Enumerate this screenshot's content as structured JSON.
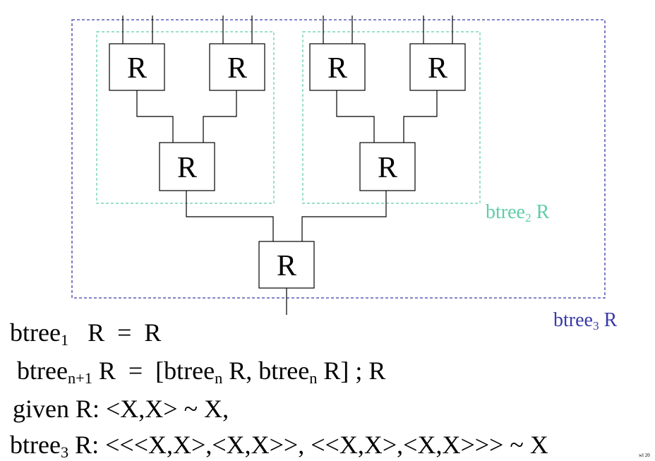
{
  "colors": {
    "inner_box": "#5fcda9",
    "outer_box": "#3a3aa8",
    "ink": "#000000"
  },
  "diagram": {
    "node_label": "R",
    "inner_label": {
      "base": "btree",
      "sub": "2",
      "rest": " R"
    },
    "outer_label": {
      "base": "btree",
      "sub": "3",
      "rest": " R"
    }
  },
  "equations": [
    {
      "parts": [
        {
          "t": "btree"
        },
        {
          "sub": "1"
        },
        {
          "t": "   R  =  R"
        }
      ]
    },
    {
      "parts": [
        {
          "t": "btree"
        },
        {
          "sub": "n+1"
        },
        {
          "t": " R  =  [btree"
        },
        {
          "sub": "n"
        },
        {
          "t": " R, btree"
        },
        {
          "sub": "n"
        },
        {
          "t": " R] ; R"
        }
      ]
    },
    {
      "parts": [
        {
          "t": "given R: <X,X> ~ X,"
        }
      ]
    },
    {
      "parts": [
        {
          "t": "btree"
        },
        {
          "sub": "3"
        },
        {
          "t": " R: <<<X,X>,<X,X>>, <<X,X>,<X,X>>> ~ X"
        }
      ]
    }
  ],
  "corner_note": "wl 20"
}
